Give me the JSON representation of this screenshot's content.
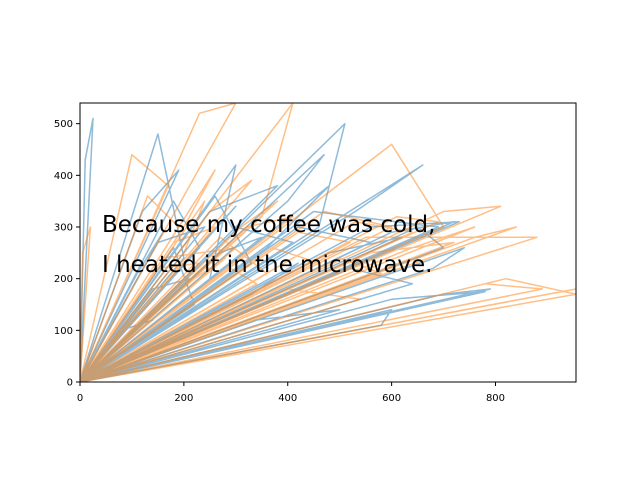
{
  "chart_data": {
    "type": "line",
    "title": "",
    "xlabel": "",
    "ylabel": "",
    "xlim": [
      0,
      955
    ],
    "ylim": [
      0,
      540
    ],
    "x_ticks": [
      0,
      200,
      400,
      600,
      800
    ],
    "y_ticks": [
      0,
      100,
      200,
      300,
      400,
      500
    ],
    "grid": false,
    "legend": "none",
    "series_colors": [
      "#1f77b4",
      "#ff7f0e"
    ],
    "series_alpha": 0.5,
    "series": [
      {
        "color": "#1f77b4",
        "points": [
          [
            0,
            0
          ],
          [
            10,
            430
          ],
          [
            25,
            510
          ],
          [
            0,
            0
          ],
          [
            150,
            480
          ],
          [
            200,
            240
          ],
          [
            0,
            0
          ],
          [
            420,
            300
          ],
          [
            560,
            270
          ],
          [
            0,
            0
          ],
          [
            300,
            420
          ],
          [
            250,
            200
          ],
          [
            0,
            0
          ],
          [
            680,
            220
          ],
          [
            740,
            260
          ],
          [
            0,
            0
          ],
          [
            120,
            330
          ],
          [
            190,
            410
          ],
          [
            0,
            0
          ],
          [
            600,
            160
          ],
          [
            780,
            175
          ],
          [
            0,
            0
          ],
          [
            360,
            260
          ],
          [
            480,
            380
          ],
          [
            0,
            0
          ],
          [
            220,
            150
          ],
          [
            180,
            260
          ],
          [
            0,
            0
          ],
          [
            450,
            330
          ],
          [
            690,
            300
          ],
          [
            0,
            0
          ],
          [
            260,
            360
          ],
          [
            330,
            230
          ],
          [
            0,
            0
          ],
          [
            520,
            220
          ],
          [
            640,
            190
          ],
          [
            0,
            0
          ],
          [
            150,
            270
          ],
          [
            240,
            300
          ],
          [
            0,
            0
          ],
          [
            400,
            350
          ],
          [
            470,
            440
          ],
          [
            0,
            0
          ],
          [
            560,
            300
          ],
          [
            730,
            310
          ],
          [
            0,
            0
          ],
          [
            200,
            230
          ],
          [
            300,
            340
          ],
          [
            0,
            0
          ],
          [
            340,
            120
          ],
          [
            500,
            140
          ],
          [
            0,
            0
          ],
          [
            110,
            210
          ],
          [
            160,
            290
          ],
          [
            0,
            0
          ],
          [
            650,
            300
          ],
          [
            700,
            260
          ],
          [
            0,
            0
          ],
          [
            300,
            300
          ],
          [
            410,
            270
          ],
          [
            0,
            0
          ],
          [
            580,
            110
          ],
          [
            600,
            140
          ],
          [
            0,
            0
          ],
          [
            250,
            330
          ],
          [
            380,
            380
          ],
          [
            0,
            0
          ],
          [
            480,
            250
          ],
          [
            620,
            280
          ],
          [
            0,
            0
          ],
          [
            180,
            350
          ],
          [
            230,
            260
          ],
          [
            0,
            0
          ],
          [
            790,
            180
          ],
          [
            700,
            170
          ],
          [
            0,
            0
          ],
          [
            330,
            170
          ],
          [
            420,
            230
          ],
          [
            0,
            0
          ],
          [
            530,
            330
          ],
          [
            660,
            420
          ],
          [
            0,
            0
          ],
          [
            140,
            180
          ],
          [
            210,
            200
          ],
          [
            0,
            0
          ],
          [
            720,
            310
          ],
          [
            600,
            290
          ],
          [
            0,
            0
          ],
          [
            270,
            250
          ],
          [
            350,
            280
          ],
          [
            0,
            0
          ],
          [
            460,
            300
          ],
          [
            510,
            500
          ],
          [
            0,
            0
          ],
          [
            80,
            100
          ],
          [
            140,
            120
          ]
        ]
      },
      {
        "color": "#ff7f0e",
        "points": [
          [
            0,
            0
          ],
          [
            5,
            250
          ],
          [
            20,
            300
          ],
          [
            0,
            0
          ],
          [
            230,
            520
          ],
          [
            300,
            540
          ],
          [
            0,
            0
          ],
          [
            600,
            460
          ],
          [
            700,
            300
          ],
          [
            0,
            0
          ],
          [
            900,
            170
          ],
          [
            955,
            180
          ],
          [
            0,
            0
          ],
          [
            410,
            540
          ],
          [
            350,
            320
          ],
          [
            0,
            0
          ],
          [
            200,
            300
          ],
          [
            260,
            410
          ],
          [
            0,
            0
          ],
          [
            550,
            280
          ],
          [
            880,
            280
          ],
          [
            0,
            0
          ],
          [
            160,
            240
          ],
          [
            300,
            260
          ],
          [
            0,
            0
          ],
          [
            400,
            180
          ],
          [
            540,
            160
          ],
          [
            0,
            0
          ],
          [
            310,
            300
          ],
          [
            380,
            350
          ],
          [
            0,
            0
          ],
          [
            640,
            260
          ],
          [
            760,
            300
          ],
          [
            0,
            0
          ],
          [
            220,
            200
          ],
          [
            280,
            240
          ],
          [
            0,
            0
          ],
          [
            470,
            330
          ],
          [
            600,
            300
          ],
          [
            0,
            0
          ],
          [
            130,
            360
          ],
          [
            190,
            300
          ],
          [
            0,
            0
          ],
          [
            700,
            330
          ],
          [
            810,
            340
          ],
          [
            0,
            0
          ],
          [
            370,
            260
          ],
          [
            460,
            230
          ],
          [
            0,
            0
          ],
          [
            250,
            330
          ],
          [
            330,
            390
          ],
          [
            0,
            0
          ],
          [
            560,
            250
          ],
          [
            720,
            270
          ],
          [
            0,
            0
          ],
          [
            180,
            270
          ],
          [
            260,
            300
          ],
          [
            0,
            0
          ],
          [
            820,
            200
          ],
          [
            955,
            170
          ],
          [
            0,
            0
          ],
          [
            420,
            290
          ],
          [
            520,
            270
          ],
          [
            0,
            0
          ],
          [
            290,
            220
          ],
          [
            340,
            190
          ],
          [
            0,
            0
          ],
          [
            610,
            320
          ],
          [
            690,
            310
          ],
          [
            0,
            0
          ],
          [
            200,
            250
          ],
          [
            240,
            350
          ],
          [
            0,
            0
          ],
          [
            500,
            240
          ],
          [
            580,
            210
          ],
          [
            0,
            0
          ],
          [
            150,
            220
          ],
          [
            230,
            230
          ],
          [
            0,
            0
          ],
          [
            760,
            280
          ],
          [
            840,
            300
          ],
          [
            0,
            0
          ],
          [
            320,
            300
          ],
          [
            410,
            320
          ],
          [
            0,
            0
          ],
          [
            270,
            280
          ],
          [
            360,
            210
          ],
          [
            0,
            0
          ],
          [
            530,
            310
          ],
          [
            640,
            290
          ],
          [
            0,
            0
          ],
          [
            100,
            440
          ],
          [
            170,
            380
          ],
          [
            0,
            0
          ],
          [
            890,
            180
          ],
          [
            780,
            190
          ]
        ]
      }
    ],
    "annotation": [
      "Because my coffee was cold,",
      "I heated it in the microwave."
    ]
  }
}
